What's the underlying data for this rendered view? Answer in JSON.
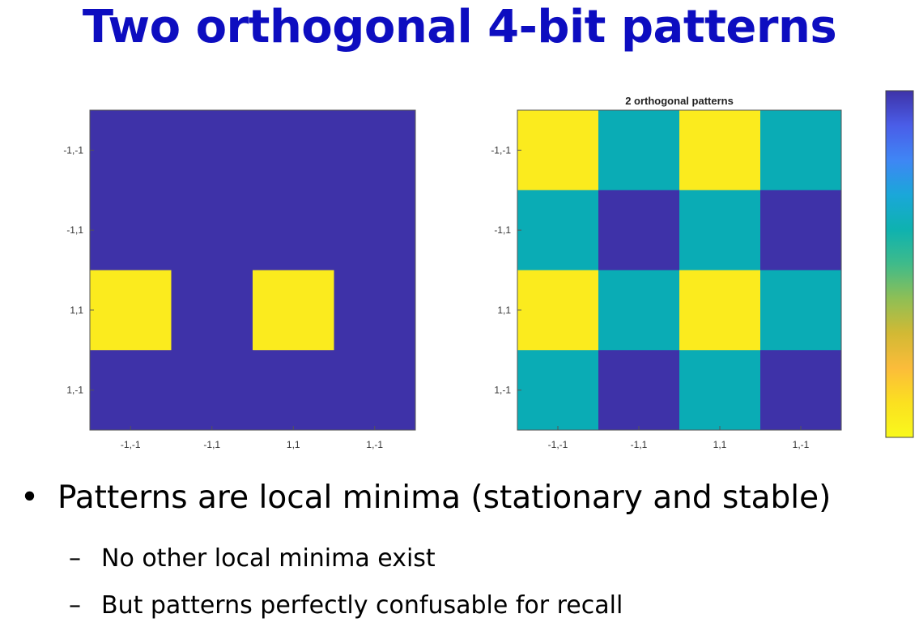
{
  "slide": {
    "title": "Two orthogonal 4-bit patterns",
    "bullets": [
      {
        "level": 1,
        "marker": "•",
        "text": "Patterns are local minima (stationary and stable)"
      },
      {
        "level": 2,
        "marker": "–",
        "text": "No other local minima exist"
      },
      {
        "level": 2,
        "marker": "–",
        "text": "But patterns perfectly confusable for recall"
      }
    ]
  },
  "chart_data": [
    {
      "type": "heatmap",
      "title": "",
      "x_ticks": [
        "-1,-1",
        "-1,1",
        "1,1",
        "1,-1"
      ],
      "y_ticks": [
        "-1,-1",
        "-1,1",
        "1,1",
        "1,-1"
      ],
      "values": [
        [
          0,
          0,
          0,
          0
        ],
        [
          0,
          0,
          0,
          0
        ],
        [
          1,
          0,
          1,
          0
        ],
        [
          0,
          0,
          0,
          0
        ]
      ],
      "colors": {
        "low": "#3e32a8",
        "mid": "#0aacb5",
        "high": "#fbeb1e"
      }
    },
    {
      "type": "heatmap",
      "title": "2 orthogonal patterns",
      "x_ticks": [
        "-1,-1",
        "-1,1",
        "1,1",
        "1,-1"
      ],
      "y_ticks": [
        "-1,-1",
        "-1,1",
        "1,1",
        "1,-1"
      ],
      "values": [
        [
          1,
          0.5,
          1,
          0.5
        ],
        [
          0.5,
          0,
          0.5,
          0
        ],
        [
          1,
          0.5,
          1,
          0.5
        ],
        [
          0.5,
          0,
          0.5,
          0
        ]
      ],
      "colors": {
        "low": "#3e32a8",
        "mid": "#0aacb5",
        "high": "#fbeb1e"
      }
    }
  ],
  "colorbar": {
    "stops": [
      "#3e32a8",
      "#4a5de8",
      "#3f86f5",
      "#1aa7d9",
      "#0eb2b0",
      "#3fbb8a",
      "#8fbf55",
      "#d2b934",
      "#fbbc3a",
      "#fbe020",
      "#f9f91c"
    ]
  }
}
